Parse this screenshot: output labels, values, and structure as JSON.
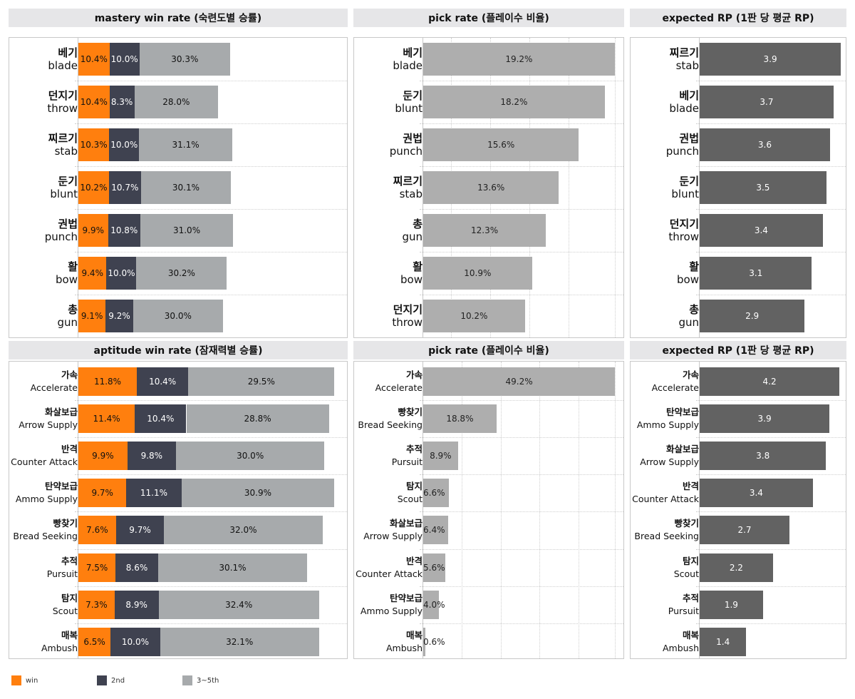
{
  "colors": {
    "win": "#ff7f0e",
    "second": "#3f4250",
    "third_fifth": "#a7aaac",
    "pick": "#aeaeae",
    "rp": "#626262"
  },
  "legend": [
    {
      "label": "win",
      "color": "#ff7f0e"
    },
    {
      "label": "2nd",
      "color": "#3f4250"
    },
    {
      "label": "3~5th",
      "color": "#a7aaac"
    }
  ],
  "chart_data": [
    {
      "type": "bar",
      "stacked": true,
      "orientation": "horizontal",
      "title": "mastery win rate (숙련도별 승률)",
      "categories": [
        {
          "ko": "베기",
          "en": "blade"
        },
        {
          "ko": "던지기",
          "en": "throw"
        },
        {
          "ko": "찌르기",
          "en": "stab"
        },
        {
          "ko": "둔기",
          "en": "blunt"
        },
        {
          "ko": "권법",
          "en": "punch"
        },
        {
          "ko": "활",
          "en": "bow"
        },
        {
          "ko": "총",
          "en": "gun"
        }
      ],
      "series": [
        {
          "name": "win",
          "values": [
            10.4,
            10.4,
            10.3,
            10.2,
            9.9,
            9.4,
            9.1
          ],
          "labels": [
            "10.4%",
            "10.4%",
            "10.3%",
            "10.2%",
            "9.9%",
            "9.4%",
            "9.1%"
          ]
        },
        {
          "name": "2nd",
          "values": [
            10.0,
            8.3,
            10.0,
            10.7,
            10.8,
            10.0,
            9.2
          ],
          "labels": [
            "10.0%",
            "8.3%",
            "10.0%",
            "10.7%",
            "10.8%",
            "10.0%",
            "9.2%"
          ]
        },
        {
          "name": "3~5th",
          "values": [
            30.3,
            28.0,
            31.1,
            30.1,
            31.0,
            30.2,
            30.0
          ],
          "labels": [
            "30.3%",
            "28.0%",
            "31.1%",
            "30.1%",
            "31.0%",
            "30.2%",
            "30.0%"
          ]
        }
      ]
    },
    {
      "type": "bar",
      "orientation": "horizontal",
      "title": "pick rate (플레이수 비율)",
      "categories": [
        {
          "ko": "베기",
          "en": "blade"
        },
        {
          "ko": "둔기",
          "en": "blunt"
        },
        {
          "ko": "권법",
          "en": "punch"
        },
        {
          "ko": "찌르기",
          "en": "stab"
        },
        {
          "ko": "총",
          "en": "gun"
        },
        {
          "ko": "활",
          "en": "bow"
        },
        {
          "ko": "던지기",
          "en": "throw"
        }
      ],
      "values": [
        19.2,
        18.2,
        15.6,
        13.6,
        12.3,
        10.9,
        10.2
      ],
      "labels": [
        "19.2%",
        "18.2%",
        "15.6%",
        "13.6%",
        "12.3%",
        "10.9%",
        "10.2%"
      ]
    },
    {
      "type": "bar",
      "orientation": "horizontal",
      "title": "expected RP (1판 당 평균 RP)",
      "categories": [
        {
          "ko": "찌르기",
          "en": "stab"
        },
        {
          "ko": "베기",
          "en": "blade"
        },
        {
          "ko": "권법",
          "en": "punch"
        },
        {
          "ko": "둔기",
          "en": "blunt"
        },
        {
          "ko": "던지기",
          "en": "throw"
        },
        {
          "ko": "활",
          "en": "bow"
        },
        {
          "ko": "총",
          "en": "gun"
        }
      ],
      "values": [
        3.9,
        3.7,
        3.6,
        3.5,
        3.4,
        3.1,
        2.9
      ],
      "labels": [
        "3.9",
        "3.7",
        "3.6",
        "3.5",
        "3.4",
        "3.1",
        "2.9"
      ]
    },
    {
      "type": "bar",
      "stacked": true,
      "orientation": "horizontal",
      "title": "aptitude win rate (잠재력별 승률)",
      "categories": [
        {
          "ko": "가속",
          "en": "Accelerate"
        },
        {
          "ko": "화살보급",
          "en": "Arrow Supply"
        },
        {
          "ko": "반격",
          "en": "Counter Attack"
        },
        {
          "ko": "탄약보급",
          "en": "Ammo Supply"
        },
        {
          "ko": "빵찾기",
          "en": "Bread Seeking"
        },
        {
          "ko": "추적",
          "en": "Pursuit"
        },
        {
          "ko": "탐지",
          "en": "Scout"
        },
        {
          "ko": "매복",
          "en": "Ambush"
        }
      ],
      "series": [
        {
          "name": "win",
          "values": [
            11.8,
            11.4,
            9.9,
            9.7,
            7.6,
            7.5,
            7.3,
            6.5
          ],
          "labels": [
            "11.8%",
            "11.4%",
            "9.9%",
            "9.7%",
            "7.6%",
            "7.5%",
            "7.3%",
            "6.5%"
          ]
        },
        {
          "name": "2nd",
          "values": [
            10.4,
            10.4,
            9.8,
            11.1,
            9.7,
            8.6,
            8.9,
            10.0
          ],
          "labels": [
            "10.4%",
            "10.4%",
            "9.8%",
            "11.1%",
            "9.7%",
            "8.6%",
            "8.9%",
            "10.0%"
          ]
        },
        {
          "name": "3~5th",
          "values": [
            29.5,
            28.8,
            30.0,
            30.9,
            32.0,
            30.1,
            32.4,
            32.1
          ],
          "labels": [
            "29.5%",
            "28.8%",
            "30.0%",
            "30.9%",
            "32.0%",
            "30.1%",
            "32.4%",
            "32.1%"
          ]
        }
      ]
    },
    {
      "type": "bar",
      "orientation": "horizontal",
      "title": "pick rate (플레이수 비율)",
      "categories": [
        {
          "ko": "가속",
          "en": "Accelerate"
        },
        {
          "ko": "빵찾기",
          "en": "Bread Seeking"
        },
        {
          "ko": "추적",
          "en": "Pursuit"
        },
        {
          "ko": "탐지",
          "en": "Scout"
        },
        {
          "ko": "화살보급",
          "en": "Arrow Supply"
        },
        {
          "ko": "반격",
          "en": "Counter Attack"
        },
        {
          "ko": "탄약보급",
          "en": "Ammo Supply"
        },
        {
          "ko": "매복",
          "en": "Ambush"
        }
      ],
      "values": [
        49.2,
        18.8,
        8.9,
        6.6,
        6.4,
        5.6,
        4.0,
        0.6
      ],
      "labels": [
        "49.2%",
        "18.8%",
        "8.9%",
        "6.6%",
        "6.4%",
        "5.6%",
        "4.0%",
        "0.6%"
      ]
    },
    {
      "type": "bar",
      "orientation": "horizontal",
      "title": "expected RP (1판 당 평균 RP)",
      "categories": [
        {
          "ko": "가속",
          "en": "Accelerate"
        },
        {
          "ko": "탄약보급",
          "en": "Ammo Supply"
        },
        {
          "ko": "화살보급",
          "en": "Arrow Supply"
        },
        {
          "ko": "반격",
          "en": "Counter Attack"
        },
        {
          "ko": "빵찾기",
          "en": "Bread Seeking"
        },
        {
          "ko": "탐지",
          "en": "Scout"
        },
        {
          "ko": "추적",
          "en": "Pursuit"
        },
        {
          "ko": "매복",
          "en": "Ambush"
        }
      ],
      "values": [
        4.2,
        3.9,
        3.8,
        3.4,
        2.7,
        2.2,
        1.9,
        1.4
      ],
      "labels": [
        "4.2",
        "3.9",
        "3.8",
        "3.4",
        "2.7",
        "2.2",
        "1.9",
        "1.4"
      ]
    }
  ]
}
